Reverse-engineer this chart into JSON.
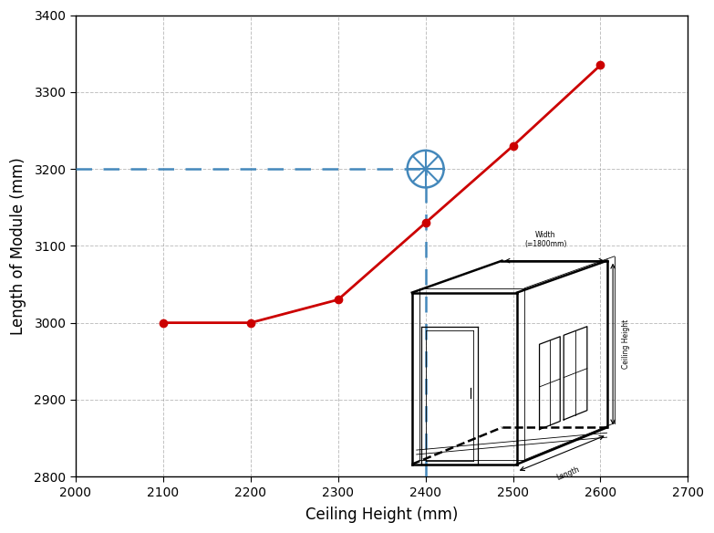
{
  "x": [
    2100,
    2200,
    2300,
    2400,
    2500,
    2600
  ],
  "y": [
    3000,
    3000,
    3030,
    3130,
    3230,
    3335
  ],
  "line_color": "#CC0000",
  "marker_color": "#CC0000",
  "dashed_h_y": 3200,
  "dashed_v_x": 2400,
  "cross_x": 2400,
  "cross_y": 3200,
  "xlabel": "Ceiling Height (mm)",
  "ylabel": "Length of Module (mm)",
  "xlim": [
    2000,
    2700
  ],
  "ylim": [
    2800,
    3400
  ],
  "xticks": [
    2000,
    2100,
    2200,
    2300,
    2400,
    2500,
    2600,
    2700
  ],
  "yticks": [
    2800,
    2900,
    3000,
    3100,
    3200,
    3300,
    3400
  ],
  "grid_color": "#999999",
  "dashed_color": "#4488bb",
  "cross_color": "#4488bb",
  "background_color": "#ffffff",
  "fig_width": 7.83,
  "fig_height": 5.84,
  "dpi": 100
}
